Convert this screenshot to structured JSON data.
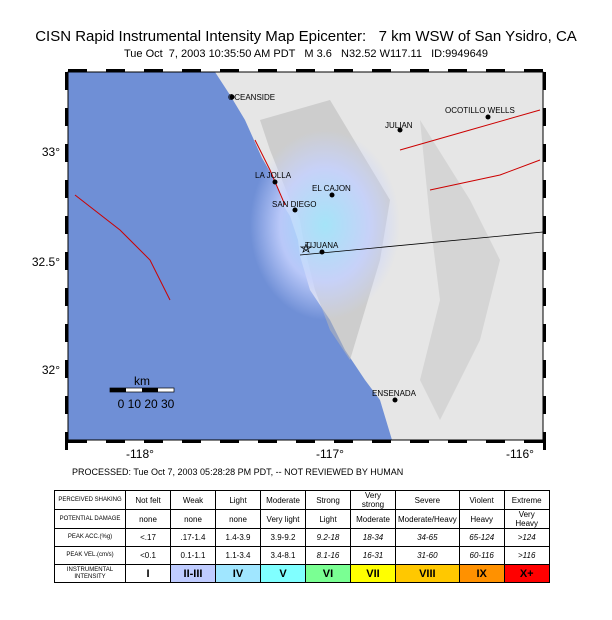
{
  "header": {
    "title": "CISN Rapid Instrumental Intensity Map Epicenter:   7 km WSW of San Ysidro, CA",
    "subtitle": "Tue Oct  7, 2003 10:35:50 AM PDT   M 3.6   N32.52 W117.11   ID:9949649"
  },
  "map": {
    "lat_labels": [
      "33°",
      "32.5°",
      "32°"
    ],
    "lon_labels": [
      "-118°",
      "-117°",
      "-116°"
    ],
    "places": [
      "OCEANSIDE",
      "JULIAN",
      "OCOTILLO WELLS",
      "LA JOLLA",
      "EL CAJON",
      "SAN DIEGO",
      "TIJUANA",
      "ENSENADA"
    ],
    "scale_title": "km",
    "scale_labels": "0 10 20 30"
  },
  "processed": "PROCESSED: Tue Oct 7, 2003 05:28:28 PM PDT, -- NOT REVIEWED BY HUMAN",
  "table": {
    "rows": [
      [
        "PERCEIVED SHAKING",
        "Not felt",
        "Weak",
        "Light",
        "Moderate",
        "Strong",
        "Very strong",
        "Severe",
        "Violent",
        "Extreme"
      ],
      [
        "POTENTIAL DAMAGE",
        "none",
        "none",
        "none",
        "Very light",
        "Light",
        "Moderate",
        "Moderate/Heavy",
        "Heavy",
        "Very Heavy"
      ],
      [
        "PEAK ACC.(%g)",
        "<.17",
        ".17-1.4",
        "1.4-3.9",
        "3.9-9.2",
        "9.2-18",
        "18-34",
        "34-65",
        "65-124",
        ">124"
      ],
      [
        "PEAK VEL.(cm/s)",
        "<0.1",
        "0.1-1.1",
        "1.1-3.4",
        "3.4-8.1",
        "8.1-16",
        "16-31",
        "31-60",
        "60-116",
        ">116"
      ],
      [
        "INSTRUMENTAL INTENSITY",
        "I",
        "II-III",
        "IV",
        "V",
        "VI",
        "VII",
        "VIII",
        "IX",
        "X+"
      ]
    ],
    "colors": [
      "#ffffff",
      "#bfccff",
      "#a0e6ff",
      "#80ffff",
      "#7aff93",
      "#ffff00",
      "#ffc800",
      "#ff9100",
      "#ff0000"
    ]
  }
}
